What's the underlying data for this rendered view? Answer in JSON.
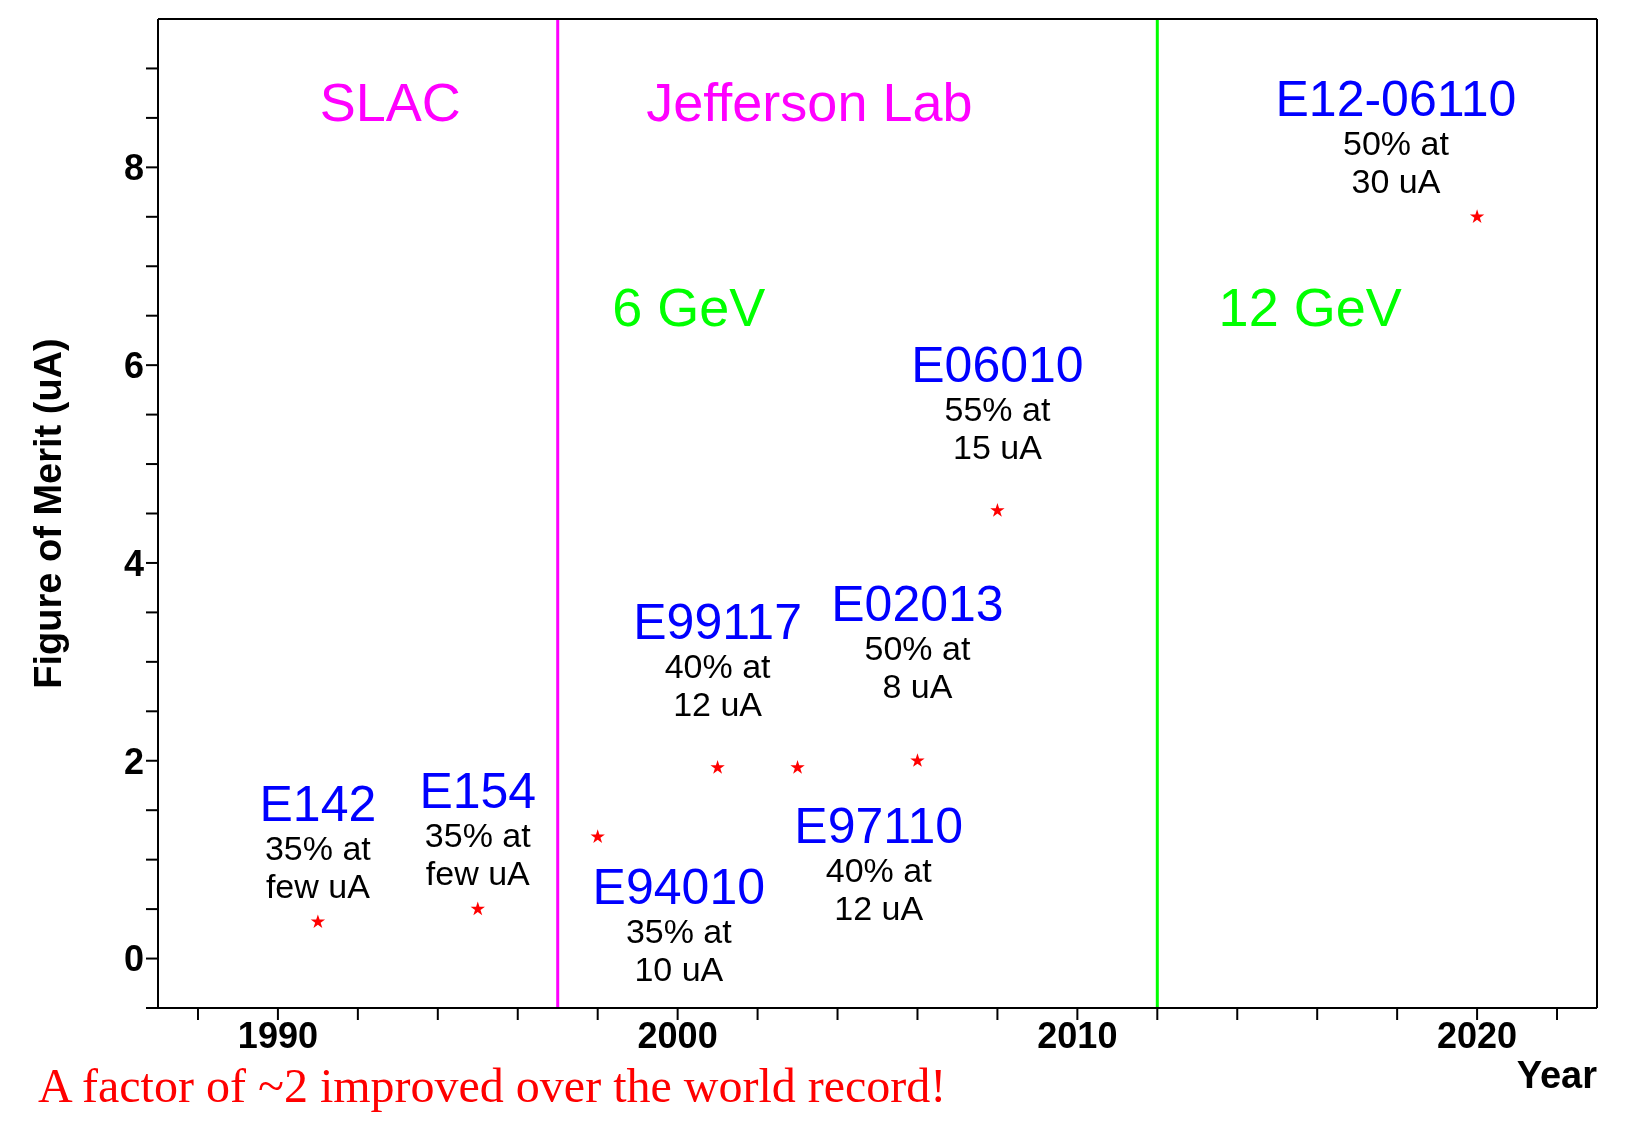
{
  "chart_data": {
    "type": "scatter",
    "xlabel": "Year",
    "ylabel": "Figure of Merit (uA)",
    "x": [
      1991,
      1995,
      1998,
      2001,
      2003,
      2006,
      2008,
      2020
    ],
    "series": [
      {
        "color": "#ff0000",
        "values": [
          0.37,
          0.5,
          1.23,
          1.93,
          1.93,
          2.0,
          4.53,
          7.5
        ]
      }
    ],
    "marker": "star",
    "xlim": [
      1987,
      2023
    ],
    "xticks": [
      {
        "value": 1988,
        "label": null
      },
      1990,
      {
        "value": 1992,
        "label": null
      },
      {
        "value": 1994,
        "label": null
      },
      {
        "value": 1996,
        "label": null
      },
      {
        "value": 1998,
        "label": null
      },
      2000,
      {
        "value": 2002,
        "label": null
      },
      {
        "value": 2004,
        "label": null
      },
      {
        "value": 2006,
        "label": null
      },
      {
        "value": 2008,
        "label": null
      },
      2010,
      {
        "value": 2012,
        "label": null
      },
      {
        "value": 2014,
        "label": null
      },
      {
        "value": 2016,
        "label": null
      },
      {
        "value": 2018,
        "label": null
      },
      2020,
      {
        "value": 2022,
        "label": null
      }
    ],
    "ylim": [
      -0.5,
      9.5
    ],
    "yticks": [
      {
        "value": -0.5,
        "label": null
      },
      0,
      {
        "value": 0.5,
        "label": null
      },
      {
        "value": 1,
        "label": null
      },
      {
        "value": 1.5,
        "label": null
      },
      2,
      {
        "value": 2.5,
        "label": null
      },
      {
        "value": 3,
        "label": null
      },
      {
        "value": 3.5,
        "label": null
      },
      4,
      {
        "value": 4.5,
        "label": null
      },
      {
        "value": 5,
        "label": null
      },
      {
        "value": 5.5,
        "label": null
      },
      6,
      {
        "value": 6.5,
        "label": null
      },
      {
        "value": 7,
        "label": null
      },
      {
        "value": 7.5,
        "label": null
      },
      8,
      {
        "value": 8.5,
        "label": null
      },
      {
        "value": 9,
        "label": null
      }
    ],
    "grid": false,
    "legend": false,
    "ref_lines": [
      {
        "axis": "x",
        "value": 1997,
        "color": "#ff00ff"
      },
      {
        "axis": "x",
        "value": 2012,
        "color": "#00ff00"
      }
    ],
    "annotations": [
      "SLAC",
      "Jefferson Lab",
      "6 GeV",
      "12 GeV",
      {
        "text": "E142\n35% at\nfew uA",
        "x": 1991,
        "y": 0.37
      },
      {
        "text": "E154\n35% at\nfew uA",
        "x": 1995,
        "y": 0.5
      },
      {
        "text": "E94010\n35% at\n10 uA",
        "x": 1998,
        "y": 1.23
      },
      {
        "text": "E99117\n40% at\n12 uA",
        "x": 2001,
        "y": 1.93
      },
      {
        "text": "E97110\n40% at\n12 uA",
        "x": 2003,
        "y": 1.93
      },
      {
        "text": "E02013\n50% at\n8 uA",
        "x": 2006,
        "y": 2.0
      },
      {
        "text": "E06010\n55% at\n15 uA",
        "x": 2008,
        "y": 4.53
      },
      {
        "text": "E12-06110\n50% at\n30 uA",
        "x": 2020,
        "y": 7.5
      },
      "A factor of ~2 improved over the world record!"
    ]
  }
}
